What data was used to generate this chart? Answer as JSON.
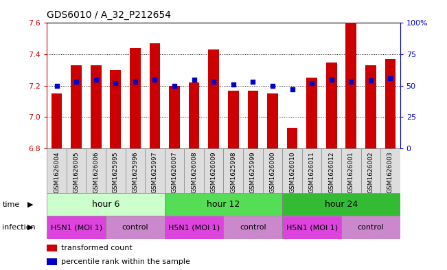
{
  "title": "GDS6010 / A_32_P212654",
  "samples": [
    "GSM1626004",
    "GSM1626005",
    "GSM1626006",
    "GSM1625995",
    "GSM1625996",
    "GSM1625997",
    "GSM1626007",
    "GSM1626008",
    "GSM1626009",
    "GSM1625998",
    "GSM1625999",
    "GSM1626000",
    "GSM1626010",
    "GSM1626011",
    "GSM1626012",
    "GSM1626001",
    "GSM1626002",
    "GSM1626003"
  ],
  "transformed_counts": [
    7.15,
    7.33,
    7.33,
    7.3,
    7.44,
    7.47,
    7.2,
    7.22,
    7.43,
    7.17,
    7.17,
    7.15,
    6.93,
    7.25,
    7.35,
    7.6,
    7.33,
    7.37
  ],
  "percentile_ranks": [
    50,
    53,
    55,
    52,
    53,
    55,
    50,
    55,
    53,
    51,
    53,
    50,
    47,
    52,
    55,
    53,
    54,
    56
  ],
  "ymin": 6.8,
  "ymax": 7.6,
  "yticks": [
    6.8,
    7.0,
    7.2,
    7.4,
    7.6
  ],
  "right_yticks": [
    0,
    25,
    50,
    75,
    100
  ],
  "right_ytick_labels": [
    "0",
    "25",
    "50",
    "75",
    "100%"
  ],
  "bar_color": "#cc0000",
  "dot_color": "#0000cc",
  "grid_color": "#000000",
  "time_groups": [
    {
      "label": "hour 6",
      "start": 0,
      "end": 6,
      "color": "#ccffcc"
    },
    {
      "label": "hour 12",
      "start": 6,
      "end": 12,
      "color": "#55dd55"
    },
    {
      "label": "hour 24",
      "start": 12,
      "end": 18,
      "color": "#33bb33"
    }
  ],
  "infection_h5n1_color": "#dd44dd",
  "infection_control_color": "#cc88cc",
  "infection_configs": [
    {
      "label": "H5N1 (MOI 1)",
      "start": 0,
      "end": 3
    },
    {
      "label": "control",
      "start": 3,
      "end": 6
    },
    {
      "label": "H5N1 (MOI 1)",
      "start": 6,
      "end": 9
    },
    {
      "label": "control",
      "start": 9,
      "end": 12
    },
    {
      "label": "H5N1 (MOI 1)",
      "start": 12,
      "end": 15
    },
    {
      "label": "control",
      "start": 15,
      "end": 18
    }
  ],
  "bar_width": 0.55,
  "legend_items": [
    {
      "label": "transformed count",
      "color": "#cc0000"
    },
    {
      "label": "percentile rank within the sample",
      "color": "#0000cc"
    }
  ],
  "sample_cell_color": "#dddddd",
  "sample_cell_edge": "#888888"
}
